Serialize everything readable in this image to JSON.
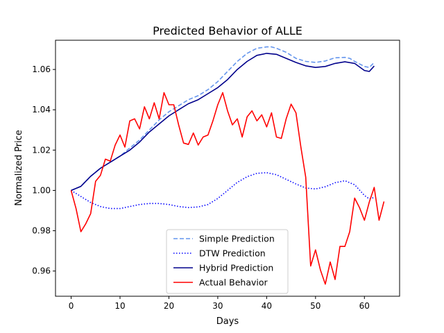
{
  "chart_data": {
    "type": "line",
    "title": "Predicted Behavior of ALLE",
    "xlabel": "Days",
    "ylabel": "Normalized Price",
    "xlim": [
      -3.2,
      67.2
    ],
    "ylim": [
      0.9475,
      1.0745
    ],
    "xticks": [
      0,
      10,
      20,
      30,
      40,
      50,
      60
    ],
    "xtick_labels": [
      "0",
      "10",
      "20",
      "30",
      "40",
      "50",
      "60"
    ],
    "yticks": [
      0.96,
      0.98,
      1.0,
      1.02,
      1.04,
      1.06
    ],
    "ytick_labels": [
      "0.96",
      "0.98",
      "1.00",
      "1.02",
      "1.04",
      "1.06"
    ],
    "grid": false,
    "legend_position": "lower-center",
    "series": [
      {
        "name": "Simple Prediction",
        "color": "#6495ed",
        "dash": "dashed",
        "x": [
          0,
          2,
          4,
          6,
          8,
          10,
          12,
          14,
          16,
          18,
          20,
          22,
          24,
          26,
          28,
          30,
          32,
          34,
          36,
          38,
          40,
          41,
          42,
          44,
          46,
          48,
          50,
          52,
          54,
          56,
          57,
          58,
          60,
          61,
          62
        ],
        "y": [
          1.0,
          1.002,
          1.007,
          1.011,
          1.014,
          1.017,
          1.021,
          1.025,
          1.03,
          1.035,
          1.039,
          1.042,
          1.045,
          1.047,
          1.05,
          1.054,
          1.059,
          1.064,
          1.068,
          1.0705,
          1.0712,
          1.0712,
          1.0705,
          1.0685,
          1.0655,
          1.064,
          1.0635,
          1.0642,
          1.0658,
          1.066,
          1.0655,
          1.064,
          1.0615,
          1.061,
          1.0635
        ]
      },
      {
        "name": "DTW Prediction",
        "color": "#0000ff",
        "dash": "dotted",
        "x": [
          0,
          2,
          4,
          6,
          8,
          10,
          12,
          14,
          16,
          18,
          20,
          22,
          24,
          26,
          28,
          30,
          32,
          34,
          36,
          38,
          40,
          42,
          44,
          46,
          48,
          50,
          52,
          54,
          56,
          58,
          60,
          61,
          62
        ],
        "y": [
          1.0,
          0.997,
          0.994,
          0.992,
          0.991,
          0.991,
          0.992,
          0.993,
          0.9935,
          0.9935,
          0.993,
          0.992,
          0.9915,
          0.9918,
          0.993,
          0.996,
          1.0,
          1.004,
          1.0068,
          1.0085,
          1.0088,
          1.0078,
          1.0055,
          1.0032,
          1.0012,
          1.0007,
          1.0018,
          1.0038,
          1.0048,
          1.0028,
          0.9975,
          0.9958,
          0.9965
        ]
      },
      {
        "name": "Hybrid Prediction",
        "color": "#00008b",
        "dash": "solid",
        "x": [
          0,
          2,
          4,
          6,
          8,
          10,
          12,
          14,
          16,
          18,
          20,
          22,
          24,
          26,
          28,
          30,
          32,
          34,
          36,
          38,
          40,
          42,
          44,
          46,
          48,
          50,
          52,
          54,
          56,
          58,
          60,
          61,
          62
        ],
        "y": [
          1.0,
          1.002,
          1.007,
          1.011,
          1.014,
          1.017,
          1.02,
          1.024,
          1.029,
          1.033,
          1.037,
          1.04,
          1.043,
          1.045,
          1.048,
          1.051,
          1.055,
          1.06,
          1.064,
          1.067,
          1.068,
          1.0675,
          1.0655,
          1.0635,
          1.0618,
          1.061,
          1.0615,
          1.063,
          1.0638,
          1.063,
          1.0595,
          1.059,
          1.0617
        ]
      },
      {
        "name": "Actual Behavior",
        "color": "#ff0000",
        "dash": "solid",
        "x": [
          0,
          1,
          2,
          3,
          4,
          5,
          6,
          7,
          8,
          9,
          10,
          11,
          12,
          13,
          14,
          15,
          16,
          17,
          18,
          19,
          20,
          21,
          22,
          23,
          24,
          25,
          26,
          27,
          28,
          29,
          30,
          31,
          32,
          33,
          34,
          35,
          36,
          37,
          38,
          39,
          40,
          41,
          42,
          43,
          44,
          45,
          46,
          47,
          48,
          49,
          50,
          51,
          52,
          53,
          54,
          55,
          56,
          57,
          58,
          59,
          60,
          61,
          62,
          63,
          64
        ],
        "y": [
          1.0,
          0.991,
          0.9795,
          0.9835,
          0.9885,
          1.0045,
          1.0075,
          1.0155,
          1.0145,
          1.0225,
          1.0275,
          1.0215,
          1.0345,
          1.0355,
          1.0305,
          1.0415,
          1.0355,
          1.0435,
          1.0355,
          1.0485,
          1.0425,
          1.0425,
          1.0325,
          1.0235,
          1.0228,
          1.0285,
          1.0225,
          1.0265,
          1.0275,
          1.0345,
          1.0425,
          1.0485,
          1.0395,
          1.0325,
          1.0355,
          1.0265,
          1.0365,
          1.0395,
          1.0345,
          1.0375,
          1.0315,
          1.0385,
          1.0265,
          1.0258,
          1.0355,
          1.0428,
          1.0385,
          1.0215,
          1.0065,
          0.9625,
          0.9705,
          0.9605,
          0.9535,
          0.9645,
          0.9558,
          0.9722,
          0.9722,
          0.9795,
          0.9962,
          0.9915,
          0.9852,
          0.9942,
          1.0015,
          0.9852,
          0.9945
        ]
      }
    ]
  }
}
